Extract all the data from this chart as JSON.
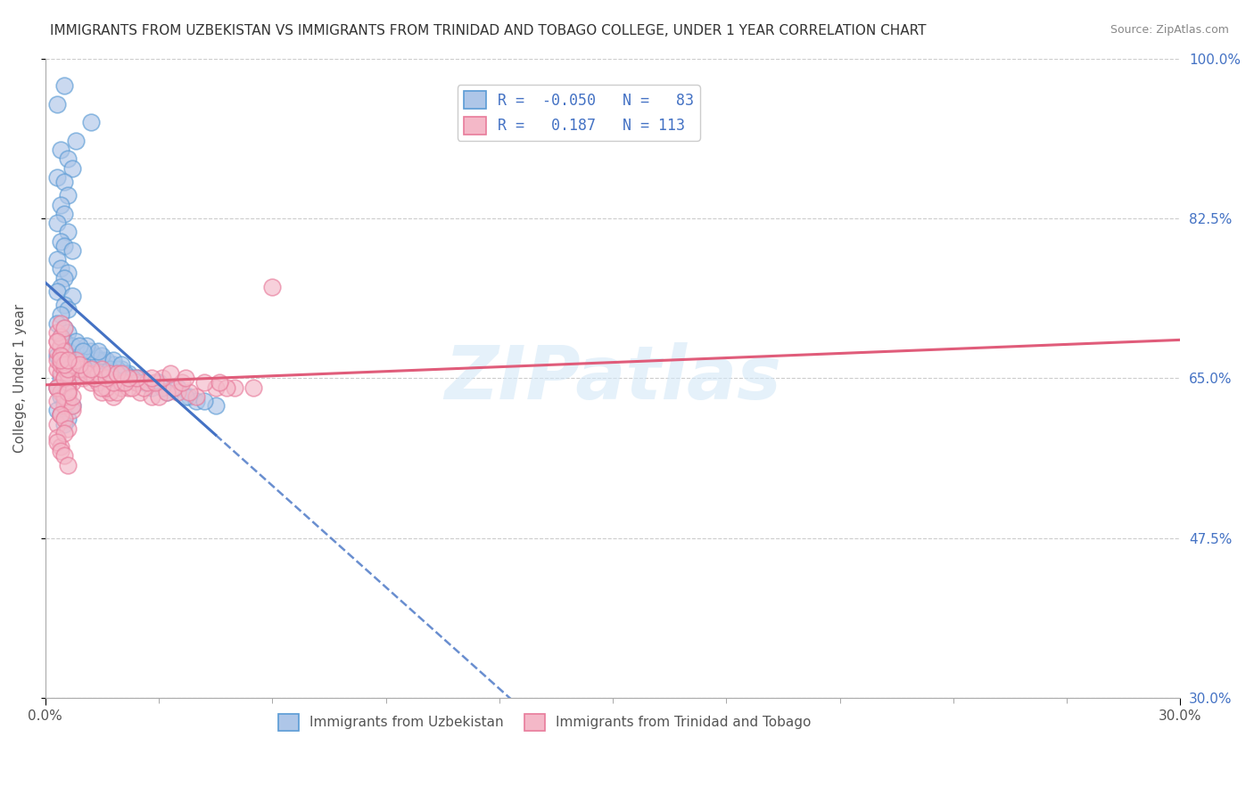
{
  "title": "IMMIGRANTS FROM UZBEKISTAN VS IMMIGRANTS FROM TRINIDAD AND TOBAGO COLLEGE, UNDER 1 YEAR CORRELATION CHART",
  "source": "Source: ZipAtlas.com",
  "ylabel": "College, Under 1 year",
  "xlim": [
    0.0,
    30.0
  ],
  "ylim": [
    30.0,
    100.0
  ],
  "xticks": [
    0.0,
    30.0
  ],
  "yticks": [
    100.0,
    82.5,
    65.0,
    47.5,
    30.0
  ],
  "ytick_labels": [
    "100.0%",
    "82.5%",
    "65.0%",
    "47.5%",
    "30.0%"
  ],
  "xtick_labels": [
    "0.0%",
    "30.0%"
  ],
  "r_uzbekistan": -0.05,
  "n_uzbekistan": 83,
  "r_trinidad": 0.187,
  "n_trinidad": 113,
  "blue_color": "#5b9bd5",
  "pink_color": "#e87b9b",
  "blue_fill": "#aec6e8",
  "pink_fill": "#f4b8c8",
  "trend_blue": "#4472c4",
  "trend_pink": "#e05c7a",
  "watermark": "ZIPatlas",
  "background_color": "#ffffff",
  "uzbekistan_x": [
    0.5,
    0.3,
    1.2,
    0.8,
    0.4,
    0.6,
    0.7,
    0.3,
    0.5,
    0.6,
    0.4,
    0.5,
    0.3,
    0.6,
    0.4,
    0.5,
    0.7,
    0.3,
    0.4,
    0.6,
    0.5,
    0.4,
    0.3,
    0.7,
    0.5,
    0.6,
    0.4,
    0.3,
    0.5,
    0.6,
    0.4,
    0.5,
    0.7,
    0.6,
    0.3,
    0.4,
    0.5,
    0.6,
    0.7,
    0.4,
    0.5,
    0.3,
    0.6,
    0.4,
    0.5,
    0.7,
    0.3,
    0.4,
    0.6,
    0.5,
    1.5,
    1.8,
    2.0,
    2.2,
    2.5,
    1.3,
    1.6,
    1.9,
    2.1,
    2.4,
    3.0,
    3.5,
    1.4,
    1.7,
    2.3,
    2.8,
    1.2,
    1.5,
    1.8,
    2.0,
    3.2,
    3.8,
    4.0,
    4.5,
    1.1,
    1.4,
    2.6,
    3.1,
    3.7,
    4.2,
    0.8,
    0.9,
    1.0
  ],
  "uzbekistan_y": [
    97.0,
    95.0,
    93.0,
    91.0,
    90.0,
    89.0,
    88.0,
    87.0,
    86.5,
    85.0,
    84.0,
    83.0,
    82.0,
    81.0,
    80.0,
    79.5,
    79.0,
    78.0,
    77.0,
    76.5,
    76.0,
    75.0,
    74.5,
    74.0,
    73.0,
    72.5,
    72.0,
    71.0,
    70.5,
    70.0,
    69.5,
    69.0,
    68.5,
    68.0,
    67.5,
    67.0,
    66.5,
    66.0,
    65.5,
    65.0,
    64.5,
    64.0,
    63.5,
    63.0,
    62.5,
    62.0,
    61.5,
    61.0,
    60.5,
    60.0,
    67.0,
    66.5,
    66.0,
    65.5,
    65.0,
    67.5,
    67.0,
    66.0,
    65.5,
    65.0,
    64.5,
    64.0,
    67.0,
    66.0,
    65.0,
    64.0,
    68.0,
    67.5,
    67.0,
    66.5,
    63.5,
    63.0,
    62.5,
    62.0,
    68.5,
    68.0,
    64.5,
    64.0,
    63.0,
    62.5,
    69.0,
    68.5,
    68.0
  ],
  "trinidad_x": [
    0.3,
    0.4,
    0.5,
    0.6,
    0.7,
    0.3,
    0.4,
    0.5,
    0.6,
    0.7,
    0.3,
    0.4,
    0.5,
    0.6,
    0.3,
    0.4,
    0.5,
    0.6,
    0.7,
    0.3,
    0.4,
    0.5,
    0.6,
    0.3,
    0.4,
    0.5,
    0.6,
    0.7,
    0.3,
    0.4,
    0.5,
    0.6,
    0.3,
    0.4,
    0.5,
    0.3,
    0.4,
    0.5,
    0.6,
    0.3,
    0.4,
    0.5,
    0.6,
    0.3,
    0.4,
    0.5,
    0.3,
    0.4,
    0.5,
    0.6,
    1.0,
    1.2,
    1.5,
    1.8,
    2.0,
    2.5,
    1.1,
    1.4,
    1.7,
    2.2,
    2.8,
    1.3,
    1.6,
    1.9,
    2.4,
    3.0,
    1.2,
    1.5,
    2.0,
    2.6,
    3.5,
    4.0,
    1.0,
    1.3,
    1.8,
    2.3,
    3.2,
    1.4,
    2.1,
    3.8,
    0.8,
    0.9,
    4.5,
    5.0,
    2.7,
    3.4,
    1.6,
    0.7,
    1.1,
    2.9,
    0.6,
    3.1,
    4.2,
    1.7,
    2.4,
    0.5,
    3.6,
    0.4,
    4.8,
    1.9,
    2.2,
    0.8,
    3.3,
    5.5,
    1.5,
    2.8,
    4.6,
    0.9,
    3.7,
    1.2,
    2.0,
    6.0,
    0.6
  ],
  "trinidad_y": [
    60.0,
    61.0,
    62.0,
    63.0,
    61.5,
    64.0,
    63.5,
    65.0,
    62.5,
    64.5,
    66.0,
    65.5,
    63.0,
    64.0,
    67.0,
    66.5,
    65.0,
    63.5,
    62.0,
    68.0,
    67.5,
    66.0,
    64.5,
    69.0,
    68.5,
    67.0,
    65.5,
    63.0,
    70.0,
    69.5,
    68.0,
    66.5,
    64.0,
    71.0,
    70.5,
    69.0,
    67.5,
    65.0,
    63.5,
    62.5,
    61.0,
    60.5,
    59.5,
    58.5,
    57.5,
    59.0,
    58.0,
    57.0,
    56.5,
    55.5,
    65.0,
    64.5,
    63.5,
    63.0,
    64.0,
    63.5,
    65.5,
    64.5,
    63.5,
    64.0,
    63.0,
    65.0,
    64.0,
    63.5,
    64.5,
    63.0,
    65.5,
    64.0,
    64.5,
    64.0,
    63.5,
    63.0,
    66.0,
    65.0,
    64.5,
    64.0,
    63.5,
    65.5,
    64.5,
    63.5,
    66.5,
    66.0,
    64.0,
    64.0,
    64.5,
    64.0,
    65.0,
    66.5,
    65.5,
    64.5,
    66.0,
    65.0,
    64.5,
    65.5,
    65.0,
    66.5,
    64.5,
    67.0,
    64.0,
    65.5,
    65.0,
    67.0,
    65.5,
    64.0,
    66.0,
    65.0,
    64.5,
    66.5,
    65.0,
    66.0,
    65.5,
    75.0,
    67.0
  ],
  "legend_label_blue": "R =  -0.050   N =   83",
  "legend_label_pink": "R =   0.187   N = 113",
  "bottom_legend_blue": "Immigrants from Uzbekistan",
  "bottom_legend_pink": "Immigrants from Trinidad and Tobago"
}
